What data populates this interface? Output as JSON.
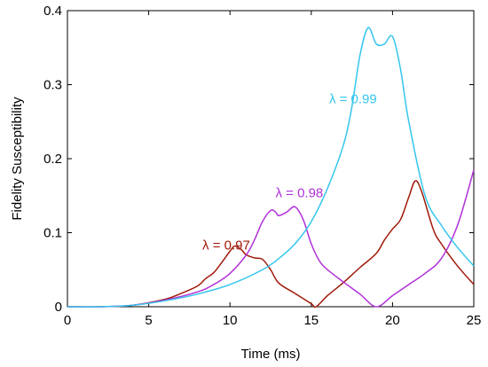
{
  "chart_data": {
    "type": "line",
    "title": "",
    "xlabel": "Time (ms)",
    "ylabel": "Fidelity Susceptibility",
    "xlim": [
      0,
      25
    ],
    "ylim": [
      0,
      0.4
    ],
    "xticks": [
      0,
      5,
      10,
      15,
      20,
      25
    ],
    "yticks": [
      0,
      0.1,
      0.2,
      0.3,
      0.4
    ],
    "xtick_labels": [
      "0",
      "5",
      "10",
      "15",
      "20",
      "25"
    ],
    "ytick_labels": [
      "0",
      "0.1",
      "0.2",
      "0.3",
      "0.4"
    ],
    "grid": false,
    "legend": "none",
    "series": [
      {
        "name": "λ = 0.97",
        "color": "#a11a0a",
        "x": [
          0,
          2,
          4,
          6,
          7,
          8,
          8.5,
          9,
          9.5,
          10,
          10.3,
          10.7,
          11,
          11.5,
          12,
          12.5,
          13,
          14,
          15,
          15.3,
          16,
          17,
          18,
          19,
          19.5,
          20,
          20.5,
          21,
          21.4,
          21.8,
          22.5,
          23,
          24,
          25
        ],
        "y": [
          0,
          0,
          0.002,
          0.01,
          0.018,
          0.028,
          0.038,
          0.046,
          0.06,
          0.075,
          0.082,
          0.077,
          0.07,
          0.066,
          0.064,
          0.05,
          0.032,
          0.018,
          0.004,
          0,
          0.015,
          0.033,
          0.053,
          0.072,
          0.09,
          0.105,
          0.118,
          0.148,
          0.17,
          0.155,
          0.105,
          0.085,
          0.055,
          0.03
        ]
      },
      {
        "name": "λ = 0.98",
        "color": "#b030d8",
        "x": [
          0,
          2,
          4,
          6,
          8,
          9,
          10,
          11,
          11.5,
          12,
          12.5,
          12.8,
          13,
          13.5,
          14,
          14.5,
          15,
          15.5,
          16,
          17,
          18,
          19,
          20,
          21,
          22,
          23,
          24,
          25
        ],
        "y": [
          0,
          0,
          0.002,
          0.009,
          0.02,
          0.03,
          0.045,
          0.07,
          0.09,
          0.115,
          0.13,
          0.128,
          0.123,
          0.128,
          0.135,
          0.118,
          0.085,
          0.062,
          0.05,
          0.033,
          0.017,
          0,
          0.015,
          0.03,
          0.045,
          0.065,
          0.11,
          0.185
        ]
      },
      {
        "name": "λ = 0.99",
        "color": "#34c6ee",
        "x": [
          0,
          2,
          4,
          6,
          8,
          10,
          12,
          13,
          14,
          15,
          16,
          17,
          17.5,
          18,
          18.5,
          19,
          19.5,
          20,
          20.5,
          21,
          22,
          23,
          24,
          25
        ],
        "y": [
          0,
          0,
          0.002,
          0.008,
          0.017,
          0.03,
          0.05,
          0.065,
          0.085,
          0.115,
          0.16,
          0.22,
          0.27,
          0.34,
          0.377,
          0.355,
          0.355,
          0.365,
          0.32,
          0.25,
          0.15,
          0.11,
          0.08,
          0.055
        ]
      }
    ],
    "annotations": [
      {
        "text": "λ = 0.97",
        "series": 0,
        "x": 8.3,
        "y": 0.077
      },
      {
        "text": "λ = 0.98",
        "series": 1,
        "x": 12.8,
        "y": 0.148
      },
      {
        "text": "λ = 0.99",
        "series": 2,
        "x": 16.1,
        "y": 0.275
      }
    ]
  }
}
